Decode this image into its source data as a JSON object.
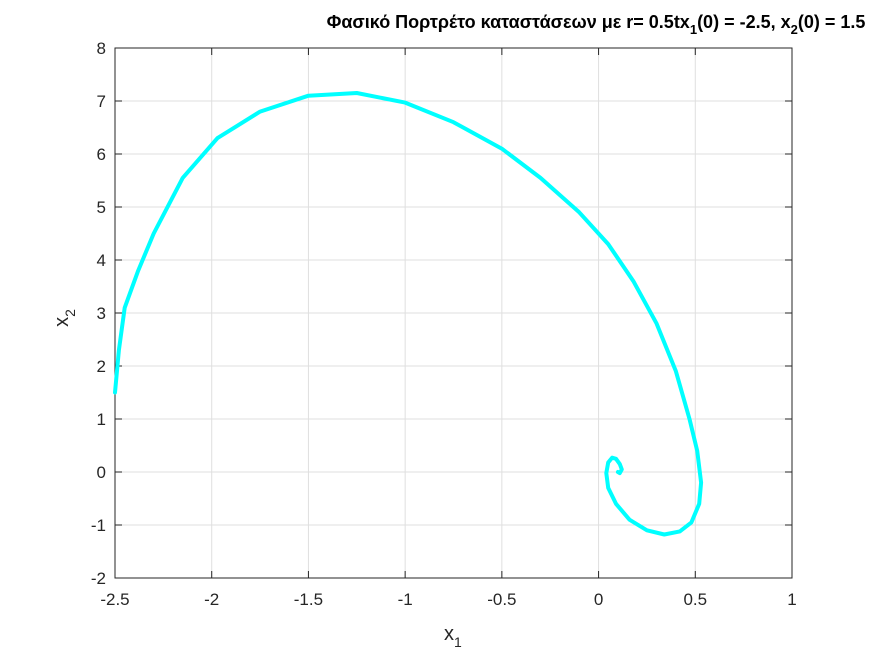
{
  "chart_data": {
    "type": "line",
    "title_main": "Φασικό Πορτρέτο καταστάσεων με r= 0.5tx",
    "title_sub1": "1",
    "title_mid": "(0) = -2.5, x",
    "title_sub2": "2",
    "title_end": "(0) = 1.5",
    "xlabel": "x",
    "xlabel_sub": "1",
    "ylabel": "x",
    "ylabel_sub": "2",
    "xlim": [
      -2.5,
      1
    ],
    "ylim": [
      -2,
      8
    ],
    "xticks": [
      -2.5,
      -2,
      -1.5,
      -1,
      -0.5,
      0,
      0.5,
      1
    ],
    "xtick_labels": [
      "-2.5",
      "-2",
      "-1.5",
      "-1",
      "-0.5",
      "0",
      "0.5",
      "1"
    ],
    "yticks": [
      -2,
      -1,
      0,
      1,
      2,
      3,
      4,
      5,
      6,
      7,
      8
    ],
    "ytick_labels": [
      "-2",
      "-1",
      "0",
      "1",
      "2",
      "3",
      "4",
      "5",
      "6",
      "7",
      "8"
    ],
    "grid": true,
    "line_color": "#00ffff",
    "series": [
      {
        "x": [
          -2.5,
          -2.48,
          -2.45,
          -2.38,
          -2.3,
          -2.15,
          -1.97,
          -1.75,
          -1.5,
          -1.25,
          -1.0,
          -0.75,
          -0.5,
          -0.3,
          -0.1,
          0.05,
          0.18,
          0.3,
          0.4,
          0.47,
          0.51,
          0.53,
          0.52,
          0.48,
          0.42,
          0.34,
          0.25,
          0.16,
          0.09,
          0.05,
          0.04,
          0.05,
          0.07,
          0.09,
          0.11,
          0.12,
          0.11,
          0.1
        ],
        "y": [
          1.5,
          2.3,
          3.1,
          3.8,
          4.5,
          5.55,
          6.3,
          6.8,
          7.1,
          7.15,
          6.97,
          6.6,
          6.1,
          5.55,
          4.9,
          4.3,
          3.6,
          2.8,
          1.9,
          1.0,
          0.4,
          -0.2,
          -0.6,
          -0.95,
          -1.12,
          -1.18,
          -1.1,
          -0.9,
          -0.6,
          -0.3,
          -0.02,
          0.18,
          0.27,
          0.25,
          0.15,
          0.05,
          -0.02,
          0.0
        ]
      }
    ]
  }
}
